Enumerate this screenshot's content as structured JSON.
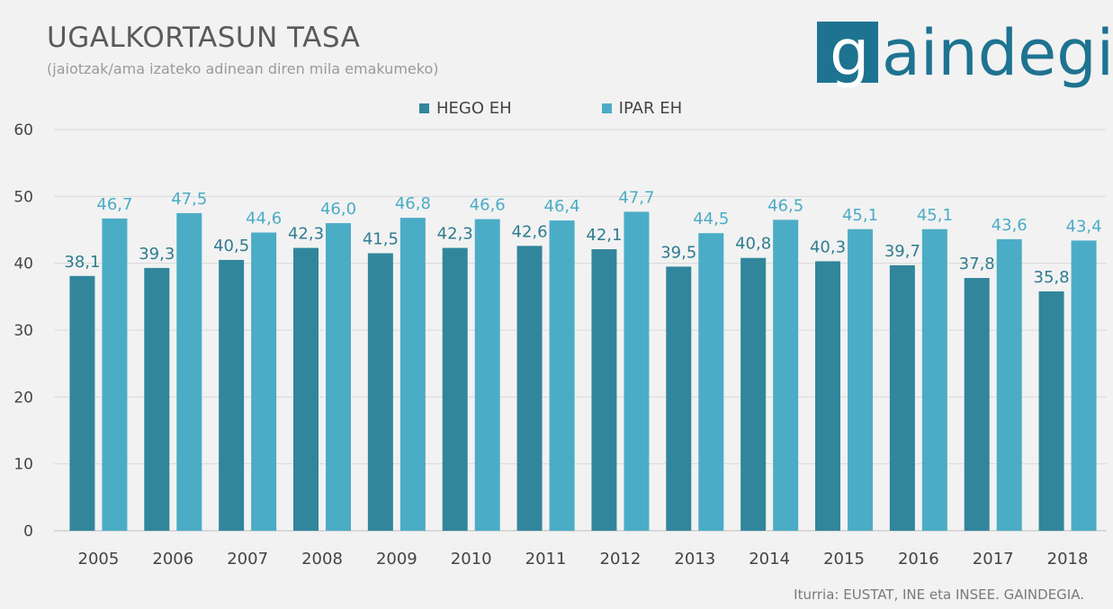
{
  "header": {
    "title": "UGALKORTASUN TASA",
    "subtitle": "(jaiotzak/ama izateko adinean diren mila emakumeko)"
  },
  "logo": {
    "first_letter": "g",
    "rest": "aindegia",
    "box_color": "#1e7391"
  },
  "footer": {
    "source": "Iturria: EUSTAT, INE eta INSEE. GAINDEGIA."
  },
  "chart_data": {
    "type": "bar",
    "title": "UGALKORTASUN TASA",
    "subtitle": "(jaiotzak/ama izateko adinean diren mila emakumeko)",
    "categories": [
      "2005",
      "2006",
      "2007",
      "2008",
      "2009",
      "2010",
      "2011",
      "2012",
      "2013",
      "2014",
      "2015",
      "2016",
      "2017",
      "2018"
    ],
    "series": [
      {
        "name": "HEGO EH",
        "color": "#31869b",
        "label_color": "#2f7c90",
        "values": [
          38.1,
          39.3,
          40.5,
          42.3,
          41.5,
          42.3,
          42.6,
          42.1,
          39.5,
          40.8,
          40.3,
          39.7,
          37.8,
          35.8
        ],
        "labels": [
          "38,1",
          "39,3",
          "40,5",
          "42,3",
          "41,5",
          "42,3",
          "42,6",
          "42,1",
          "39,5",
          "40,8",
          "40,3",
          "39,7",
          "37,8",
          "35,8"
        ]
      },
      {
        "name": "IPAR EH",
        "color": "#4bacc6",
        "label_color": "#4bacc6",
        "values": [
          46.7,
          47.5,
          44.6,
          46.0,
          46.8,
          46.6,
          46.4,
          47.7,
          44.5,
          46.5,
          45.1,
          45.1,
          43.6,
          43.4
        ],
        "labels": [
          "46,7",
          "47,5",
          "44,6",
          "46,0",
          "46,8",
          "46,6",
          "46,4",
          "47,7",
          "44,5",
          "46,5",
          "45,1",
          "45,1",
          "43,6",
          "43,4"
        ]
      }
    ],
    "yticks": [
      "0",
      "10",
      "20",
      "30",
      "40",
      "50",
      "60"
    ],
    "ylim": [
      0,
      60
    ],
    "grid": true,
    "legend_position": "top-center"
  }
}
